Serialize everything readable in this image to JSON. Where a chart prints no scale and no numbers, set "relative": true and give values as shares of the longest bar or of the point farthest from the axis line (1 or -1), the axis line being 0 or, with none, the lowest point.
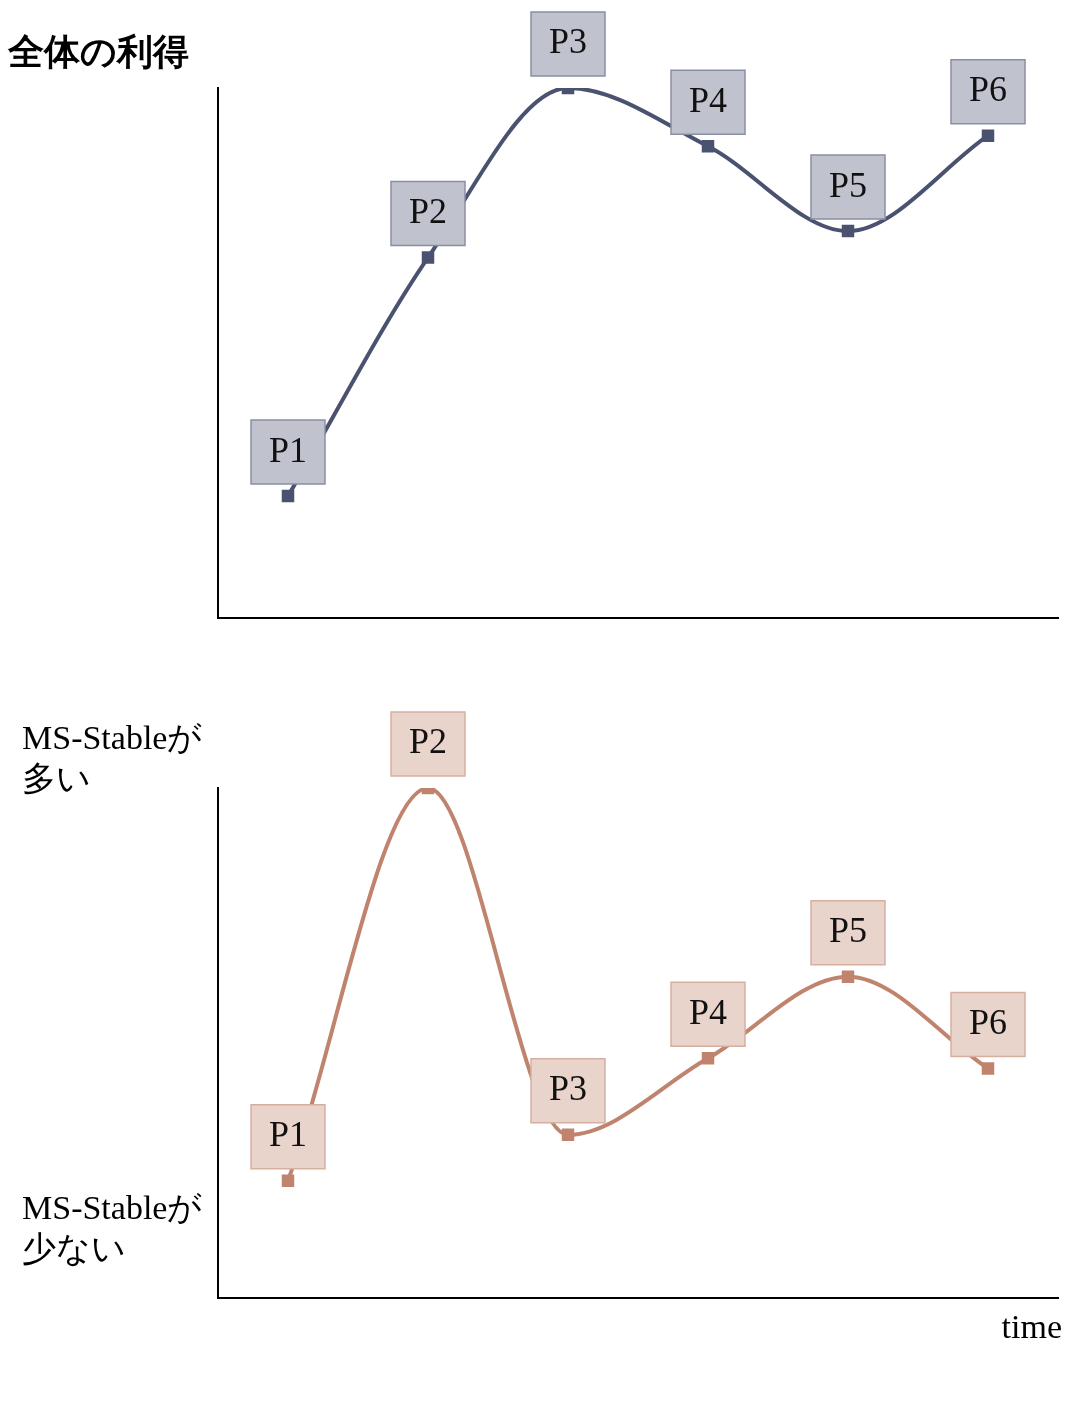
{
  "chart_data": [
    {
      "type": "line",
      "ylabel": "全体の利得",
      "relative": true,
      "categories": [
        "P1",
        "P2",
        "P3",
        "P4",
        "P5",
        "P6"
      ],
      "marker": "square",
      "grid": false,
      "legend": false,
      "tick_labels": false,
      "series": [
        {
          "color": "#4a5270",
          "values": [
            0.23,
            0.68,
            1,
            0.89,
            0.73,
            0.91
          ]
        }
      ]
    },
    {
      "type": "line",
      "xlabel": "time",
      "relative": true,
      "annotations": [
        "MS-Stableが多い",
        "MS-Stableが少ない"
      ],
      "categories": [
        "P1",
        "P2",
        "P3",
        "P4",
        "P5",
        "P6"
      ],
      "marker": "square",
      "grid": false,
      "legend": false,
      "tick_labels": false,
      "series": [
        {
          "color": "#c0846e",
          "values": [
            0.23,
            1,
            0.32,
            0.47,
            0.63,
            0.45
          ]
        }
      ]
    }
  ]
}
